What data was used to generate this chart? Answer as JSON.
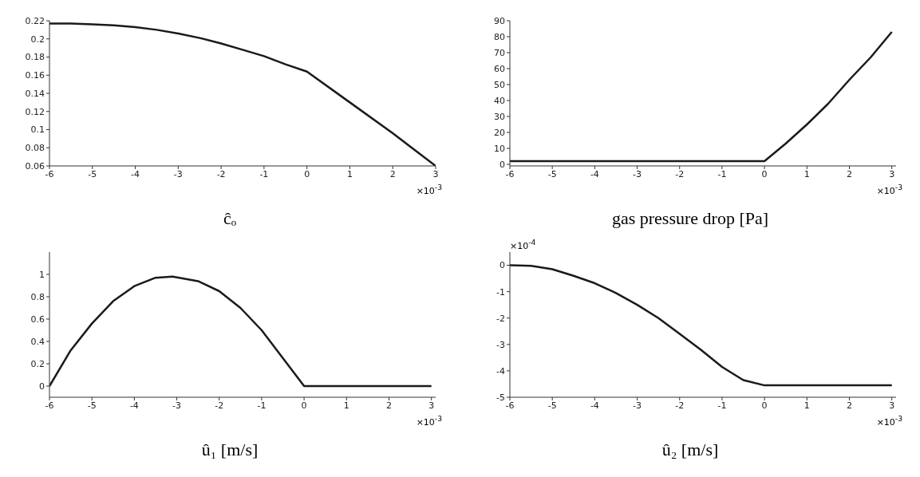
{
  "chart_data": [
    {
      "type": "line",
      "xlabel": "ĉₒ",
      "x": [
        -6,
        -5.5,
        -5,
        -4.5,
        -4,
        -3.5,
        -3,
        -2.5,
        -2,
        -1.5,
        -1,
        -0.5,
        0,
        1,
        2,
        3
      ],
      "series": [
        {
          "color": "#1a1a1a",
          "values": [
            0.217,
            0.217,
            0.216,
            0.215,
            0.213,
            0.21,
            0.206,
            0.201,
            0.195,
            0.188,
            0.181,
            0.172,
            0.164,
            0.13,
            0.096,
            0.06
          ]
        }
      ],
      "xlim": [
        -6,
        3
      ],
      "xticks": [
        -6,
        -5,
        -4,
        -3,
        -2,
        -1,
        0,
        1,
        2,
        3
      ],
      "ylim": [
        0.06,
        0.22
      ],
      "yticks": [
        0.06,
        0.08,
        0.1,
        0.12,
        0.14,
        0.16,
        0.18,
        0.2,
        0.22
      ],
      "annotations": [
        "×10$^{-3}$"
      ]
    },
    {
      "type": "line",
      "xlabel": "gas pressure drop [Pa]",
      "x": [
        -6,
        -3,
        0,
        0.5,
        1,
        1.5,
        2,
        2.5,
        3
      ],
      "series": [
        {
          "color": "#1a1a1a",
          "values": [
            2,
            2,
            2,
            13,
            25,
            38,
            53,
            67,
            83
          ]
        }
      ],
      "xlim": [
        -6,
        3.1
      ],
      "xticks": [
        -6,
        -5,
        -4,
        -3,
        -2,
        -1,
        0,
        1,
        2,
        3
      ],
      "ylim": [
        -1,
        90
      ],
      "yticks": [
        0,
        10,
        20,
        30,
        40,
        50,
        60,
        70,
        80,
        90
      ],
      "annotations": [
        "×10$^{-3}$"
      ]
    },
    {
      "type": "line",
      "xlabel": "û₁ [m/s]",
      "x": [
        -6,
        -5.5,
        -5,
        -4.5,
        -4,
        -3.5,
        -3.1,
        -2.5,
        -2,
        -1.5,
        -1,
        -0.5,
        0,
        3
      ],
      "series": [
        {
          "color": "#1a1a1a",
          "values": [
            0,
            0.32,
            0.56,
            0.76,
            0.895,
            0.97,
            0.98,
            0.94,
            0.85,
            0.7,
            0.5,
            0.25,
            0,
            0
          ]
        }
      ],
      "xlim": [
        -6,
        3.1
      ],
      "xticks": [
        -6,
        -5,
        -4,
        -3,
        -2,
        -1,
        0,
        1,
        2,
        3
      ],
      "ylim": [
        -0.1,
        1.2
      ],
      "yticks": [
        0,
        0.2,
        0.4,
        0.6,
        0.8,
        1
      ],
      "annotations": [
        "×10$^{-3}$"
      ]
    },
    {
      "type": "line",
      "xlabel": "û₂ [m/s]",
      "x": [
        -6,
        -5.5,
        -5,
        -4.5,
        -4,
        -3.5,
        -3,
        -2.5,
        -2,
        -1.5,
        -1,
        -0.5,
        0,
        3
      ],
      "series": [
        {
          "color": "#1a1a1a",
          "values": [
            0,
            -0.02,
            -0.15,
            -0.4,
            -0.68,
            -1.05,
            -1.5,
            -2.0,
            -2.6,
            -3.2,
            -3.85,
            -4.35,
            -4.55,
            -4.55
          ]
        }
      ],
      "xlim": [
        -6,
        3.1
      ],
      "xticks": [
        -6,
        -5,
        -4,
        -3,
        -2,
        -1,
        0,
        1,
        2,
        3
      ],
      "ylim": [
        -5,
        0.5
      ],
      "yticks": [
        -5,
        -4,
        -3,
        -2,
        -1,
        0
      ],
      "annotations": [
        "×10$^{-3}$",
        "×10$^{-4}$"
      ]
    }
  ]
}
